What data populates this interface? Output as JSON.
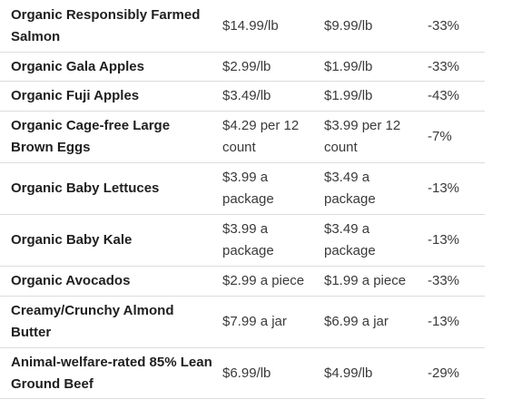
{
  "table": {
    "rows": [
      {
        "product": "Organic Responsibly Farmed Salmon",
        "regular": "$14.99/lb",
        "sale": "$9.99/lb",
        "discount": "-33%"
      },
      {
        "product": "Organic Gala Apples",
        "regular": "$2.99/lb",
        "sale": "$1.99/lb",
        "discount": "-33%"
      },
      {
        "product": "Organic Fuji Apples",
        "regular": "$3.49/lb",
        "sale": "$1.99/lb",
        "discount": "-43%"
      },
      {
        "product": "Organic Cage-free Large Brown Eggs",
        "regular": "$4.29 per 12 count",
        "sale": "$3.99 per 12 count",
        "discount": "-7%"
      },
      {
        "product": "Organic Baby Lettuces",
        "regular": "$3.99 a package",
        "sale": "$3.49 a package",
        "discount": "-13%"
      },
      {
        "product": "Organic Baby Kale",
        "regular": "$3.99 a package",
        "sale": "$3.49 a package",
        "discount": "-13%"
      },
      {
        "product": "Organic Avocados",
        "regular": "$2.99 a piece",
        "sale": "$1.99 a piece",
        "discount": "-33%"
      },
      {
        "product": "Creamy/Crunchy Almond Butter",
        "regular": "$7.99 a jar",
        "sale": "$6.99 a jar",
        "discount": "-13%"
      },
      {
        "product": "Animal-welfare-rated 85% Lean Ground Beef",
        "regular": "$6.99/lb",
        "sale": "$4.99/lb",
        "discount": "-29%"
      }
    ]
  }
}
